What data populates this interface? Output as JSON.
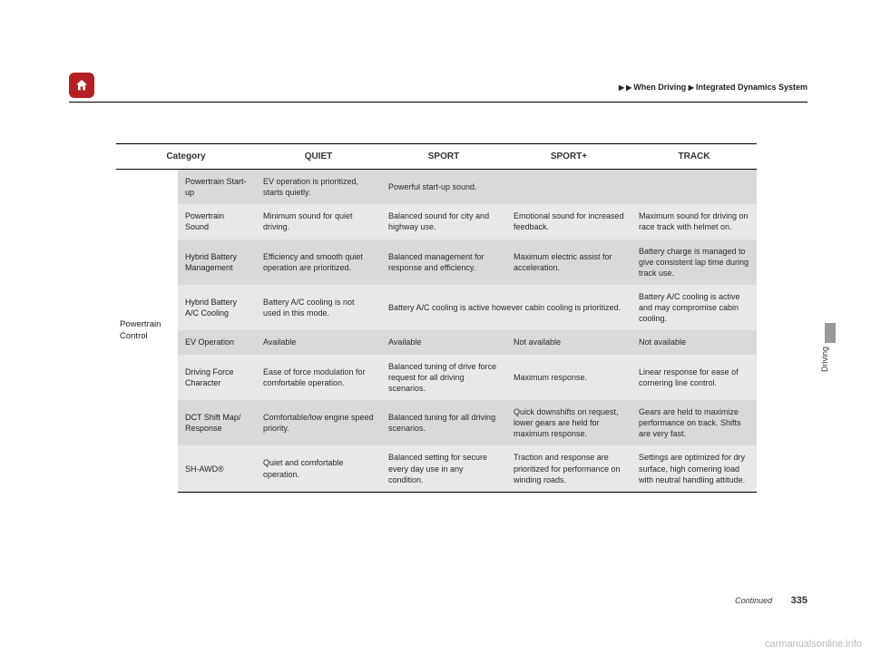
{
  "breadcrumb": {
    "sep": "▶",
    "p1": "When Driving",
    "p2": "Integrated Dynamics System"
  },
  "sideTab": "Driving",
  "footer": {
    "continued": "Continued",
    "page": "335"
  },
  "watermark": "carmanualsonline.info",
  "colors": {
    "home_bg": "#b62025",
    "row_odd": "#d9d9d9",
    "row_even": "#e8e8e8",
    "side_block": "#999999"
  },
  "table": {
    "headers": [
      "Category",
      "QUIET",
      "SPORT",
      "SPORT+",
      "TRACK"
    ],
    "group": "Powertrain Control",
    "rows": [
      {
        "sub": "Powertrain Start-up",
        "cells": [
          "EV operation is prioritized, starts quietly.",
          {
            "text": "Powerful start-up sound.",
            "span": 3
          }
        ]
      },
      {
        "sub": "Powertrain Sound",
        "cells": [
          "Minimum sound for quiet driving.",
          "Balanced sound for city and highway use.",
          "Emotional sound for increased feedback.",
          "Maximum sound for driving on race track with helmet on."
        ]
      },
      {
        "sub": "Hybrid Battery Management",
        "cells": [
          "Efficiency and smooth quiet operation are prioritized.",
          "Balanced management for response and efficiency.",
          "Maximum electric assist for acceleration.",
          "Battery charge is managed to give consistent lap time during track use."
        ]
      },
      {
        "sub": "Hybrid Battery A/C Cooling",
        "cells": [
          "Battery A/C cooling is not used in this mode.",
          {
            "text": "Battery A/C cooling is active however cabin cooling is prioritized.",
            "span": 2
          },
          "Battery A/C cooling is active and may compromise cabin cooling."
        ]
      },
      {
        "sub": "EV Operation",
        "cells": [
          "Available",
          "Available",
          "Not available",
          "Not available"
        ]
      },
      {
        "sub": "Driving Force Character",
        "cells": [
          "Ease of force modulation for comfortable operation.",
          "Balanced tuning of drive force request for all driving scenarios.",
          "Maximum response.",
          "Linear response for ease of cornering line control."
        ]
      },
      {
        "sub": "DCT Shift Map/ Response",
        "cells": [
          "Comfortable/low engine speed priority.",
          "Balanced tuning for all driving scenarios.",
          "Quick downshifts on request, lower gears are held for maximum response.",
          "Gears are held to maximize performance on track. Shifts are very fast."
        ]
      },
      {
        "sub": "SH-AWD®",
        "cells": [
          "Quiet and comfortable operation.",
          "Balanced setting for secure every day use in any condition.",
          "Traction and response are prioritized for performance on winding roads.",
          "Settings are optimized for dry surface, high cornering load with neutral handling attitude."
        ]
      }
    ]
  }
}
